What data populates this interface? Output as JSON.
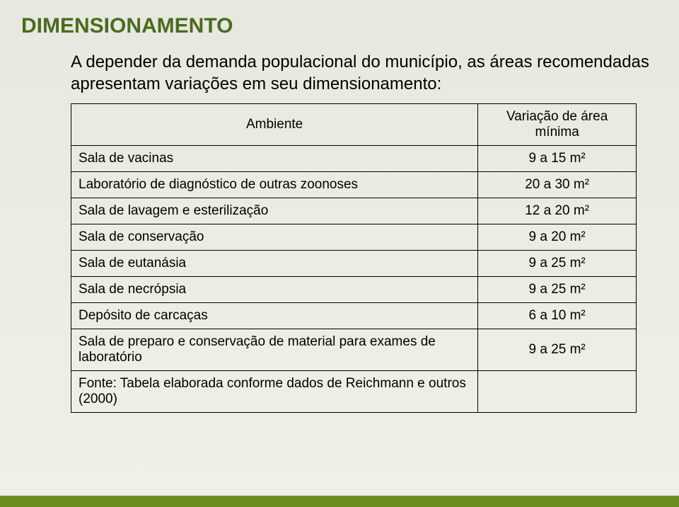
{
  "title": "DIMENSIONAMENTO",
  "intro": "A depender da demanda populacional do município, as áreas recomendadas apresentam variações em seu dimensionamento:",
  "table": {
    "columns": [
      "Ambiente",
      "Variação de área mínima"
    ],
    "rows": [
      [
        "Sala de vacinas",
        "9 a 15 m²"
      ],
      [
        "Laboratório de diagnóstico de outras zoonoses",
        "20 a 30 m²"
      ],
      [
        "Sala de lavagem e esterilização",
        "12 a 20 m²"
      ],
      [
        "Sala de conservação",
        "9 a 20 m²"
      ],
      [
        "Sala de eutanásia",
        "9 a 25 m²"
      ],
      [
        "Sala de necrópsia",
        "9 a 25 m²"
      ],
      [
        "Depósito de carcaças",
        "6 a 10 m²"
      ],
      [
        "Sala de preparo e conservação de material para exames de laboratório",
        "9 a 25 m²"
      ],
      [
        "Fonte: Tabela elaborada conforme dados de Reichmann e outros (2000)",
        ""
      ]
    ]
  },
  "colors": {
    "title": "#4a6b1f",
    "footer_bar": "#6b8e23",
    "border": "#000000",
    "text": "#000000",
    "bg_top": "#e8e8e0",
    "bg_bottom": "#f0f0e8"
  },
  "typography": {
    "title_fontsize": 30,
    "intro_fontsize": 24,
    "table_fontsize": 19,
    "font_family": "Arial"
  }
}
